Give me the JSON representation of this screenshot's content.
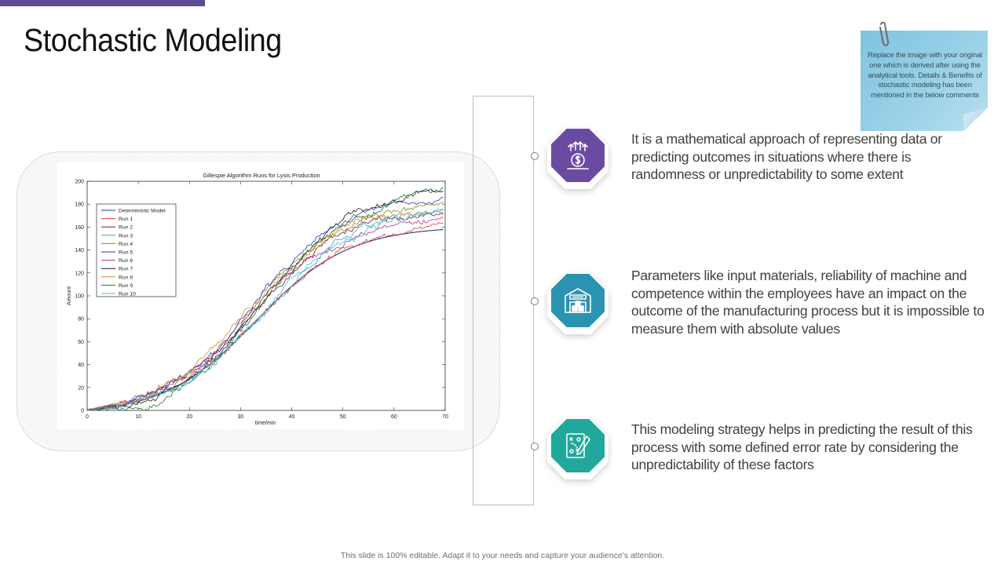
{
  "slide": {
    "title": "Stochastic Modeling",
    "accent_color": "#5e4b95"
  },
  "sticky_note": {
    "text": "Replace the image with your original one which is derived after using the analytical tools. Details & Benefits of stochastic modeling has been mentioned in the below comments",
    "icon": "paperclip-icon",
    "color": "#9ad1e8"
  },
  "chart_data": {
    "type": "line",
    "title": "Gillespie Algorithm Runs for Lysis Production",
    "xlabel": "time/min",
    "ylabel": "Amount",
    "xlim": [
      0,
      70
    ],
    "ylim": [
      0,
      200
    ],
    "x_ticks": [
      "0",
      "10",
      "20",
      "30",
      "40",
      "50",
      "60",
      "70"
    ],
    "y_ticks": [
      "0",
      "20",
      "40",
      "60",
      "80",
      "100",
      "120",
      "140",
      "160",
      "180",
      "200"
    ],
    "legend_position": "top-left",
    "grid": false,
    "series": [
      {
        "name": "Deterministic Model",
        "color": "#1f3b8c",
        "noise": 0,
        "scale": 1.0,
        "shift": 0,
        "seed": 0
      },
      {
        "name": "Run 1",
        "color": "#e8352b",
        "noise": 3.0,
        "scale": 0.9,
        "shift": 0.5,
        "seed": 11
      },
      {
        "name": "Run 2",
        "color": "#7a1c2c",
        "noise": 3.2,
        "scale": 0.96,
        "shift": 1.0,
        "seed": 23
      },
      {
        "name": "Run 3",
        "color": "#3aa6b8",
        "noise": 3.4,
        "scale": 1.0,
        "shift": -1.0,
        "seed": 37
      },
      {
        "name": "Run 4",
        "color": "#8a8a20",
        "noise": 3.0,
        "scale": 1.02,
        "shift": 0.2,
        "seed": 41
      },
      {
        "name": "Run 5",
        "color": "#3030c8",
        "noise": 3.1,
        "scale": 1.04,
        "shift": -0.4,
        "seed": 53
      },
      {
        "name": "Run 6",
        "color": "#b0369a",
        "noise": 3.2,
        "scale": 0.94,
        "shift": 0.8,
        "seed": 67
      },
      {
        "name": "Run 7",
        "color": "#1d1d1d",
        "noise": 3.0,
        "scale": 1.06,
        "shift": -0.8,
        "seed": 79
      },
      {
        "name": "Run 8",
        "color": "#d8892a",
        "noise": 3.0,
        "scale": 0.98,
        "shift": 1.2,
        "seed": 83
      },
      {
        "name": "Run 9",
        "color": "#1c7a2a",
        "noise": 3.3,
        "scale": 1.08,
        "shift": -1.2,
        "seed": 97
      },
      {
        "name": "Run 10",
        "color": "#46b8e0",
        "noise": 3.5,
        "scale": 1.0,
        "shift": -2.0,
        "seed": 101
      }
    ]
  },
  "points": [
    {
      "icon": "dollar-growth-icon",
      "color": "#6b4ba1",
      "text": "It is a mathematical approach of representing data or predicting outcomes in situations where there is randomness or unpredictability to some extent"
    },
    {
      "icon": "warehouse-icon",
      "color": "#2b93b2",
      "text": "Parameters like input materials, reliability of machine and competence within the employees have an impact on the outcome of the manufacturing process but it is impossible to measure them with absolute values"
    },
    {
      "icon": "strategy-board-icon",
      "color": "#21a89c",
      "text": "This modeling strategy helps in predicting the result of this process with some defined error rate by considering the unpredictability of these factors"
    }
  ],
  "footer": {
    "text": "This slide is 100% editable. Adapt it to your needs and capture your audience's attention."
  }
}
